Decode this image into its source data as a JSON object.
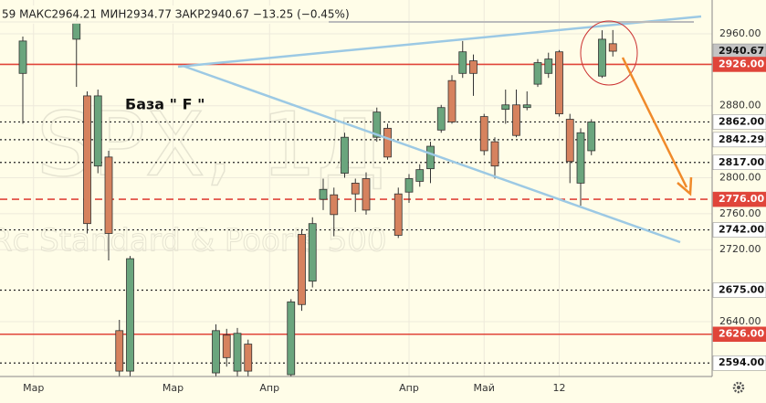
{
  "chart_data": {
    "type": "candlestick",
    "header": "59 МАКС2964.21 МИН2934.77 ЗАКР2940.67 −13.25 (−0.45%)",
    "watermark": [
      "SPX, 1Д",
      "Rc Standard & Poor's 500"
    ],
    "annotation": "База \" F \"",
    "categories": [
      null,
      "Мар",
      null,
      null,
      null,
      null,
      null,
      null,
      null,
      null,
      null,
      null,
      null,
      null,
      "Мар",
      null,
      null,
      null,
      null,
      null,
      null,
      null,
      null,
      "Апр",
      null,
      null,
      null,
      null,
      null,
      null,
      null,
      null,
      null,
      null,
      null,
      null,
      "Апр",
      null,
      null,
      null,
      null,
      null,
      null,
      "Май",
      null,
      null,
      null,
      null,
      null,
      null,
      "12",
      null,
      null,
      null,
      null,
      null
    ],
    "open": [
      2916,
      null,
      null,
      null,
      null,
      2954,
      2891,
      2813,
      2823,
      2630,
      2585,
      null,
      null,
      null,
      null,
      null,
      null,
      null,
      2583,
      2625,
      2585,
      2615,
      null,
      null,
      null,
      2581,
      2737,
      2685,
      2776,
      2781,
      2805,
      2794,
      2799,
      2845,
      2855,
      2782,
      2784,
      2796,
      2810,
      2853,
      2908,
      2916,
      2930,
      2868,
      2840,
      2876,
      2881,
      2878,
      2904,
      2916,
      2940,
      2865,
      2794,
      2830,
      2913,
      2949
    ],
    "high": [
      2957,
      null,
      null,
      null,
      null,
      2982,
      2896,
      2898,
      2830,
      2642,
      2713,
      null,
      null,
      null,
      null,
      null,
      null,
      null,
      2637,
      2632,
      2633,
      2620,
      null,
      null,
      null,
      2665,
      2743,
      2756,
      2799,
      2789,
      2850,
      2799,
      2806,
      2878,
      2860,
      2789,
      2804,
      2815,
      2840,
      2881,
      2914,
      2952,
      2937,
      2871,
      2845,
      2898,
      2898,
      2896,
      2932,
      2939,
      2942,
      2871,
      2855,
      2865,
      2964,
      2964.21
    ],
    "low": [
      2860,
      null,
      null,
      null,
      null,
      2901,
      2738,
      2805,
      2708,
      2575,
      2575,
      null,
      null,
      null,
      null,
      null,
      null,
      null,
      2575,
      2590,
      2575,
      2575,
      null,
      null,
      null,
      2575,
      2652,
      2678,
      2764,
      2735,
      2800,
      2762,
      2759,
      2840,
      2820,
      2733,
      2772,
      2790,
      2794,
      2850,
      2860,
      2911,
      2891,
      2825,
      2799,
      2860,
      2845,
      2875,
      2901,
      2911,
      2868,
      2794,
      2769,
      2825,
      2911,
      2934.77
    ],
    "close": [
      2952,
      null,
      null,
      null,
      null,
      2972,
      2749,
      2891,
      2738,
      2585,
      2710,
      null,
      null,
      null,
      null,
      null,
      null,
      null,
      2630,
      2600,
      2627,
      2585,
      null,
      null,
      null,
      2662,
      2659,
      2749,
      2787,
      2759,
      2845,
      2782,
      2764,
      2873,
      2823,
      2736,
      2799,
      2809,
      2835,
      2878,
      2862,
      2940,
      2916,
      2830,
      2813,
      2881,
      2847,
      2881,
      2928,
      2932,
      2871,
      2818,
      2850,
      2862,
      2954,
      2940.67
    ],
    "up_color": "#6aa57d",
    "down_color": "#d6825e",
    "ylim": [
      2579,
      2997.6
    ],
    "yticks": [
      {
        "value": 2960,
        "label": "2960.00"
      },
      {
        "value": 2880,
        "label": "2880.00"
      },
      {
        "value": 2800,
        "label": "2800.00"
      },
      {
        "value": 2760,
        "label": "2760.00"
      },
      {
        "value": 2720,
        "label": "2720.00"
      },
      {
        "value": 2640,
        "label": "2640.00"
      }
    ],
    "grid": true,
    "levels": [
      {
        "value": 2940.67,
        "label": "2940.67",
        "color": "#c4c4c4",
        "style": "none"
      },
      {
        "value": 2926,
        "label": "2926.00",
        "color": "#e0453a",
        "style": "solid"
      },
      {
        "value": 2862,
        "label": "2862.00",
        "color": "#222222",
        "style": "dotted"
      },
      {
        "value": 2842.29,
        "label": "2842.29",
        "color": "#222222",
        "style": "dotted"
      },
      {
        "value": 2817,
        "label": "2817.00",
        "color": "#222222",
        "style": "dotted"
      },
      {
        "value": 2776,
        "label": "2776.00",
        "color": "#e0453a",
        "style": "dashed"
      },
      {
        "value": 2742,
        "label": "2742.00",
        "color": "#222222",
        "style": "dotted"
      },
      {
        "value": 2675,
        "label": "2675.00",
        "color": "#222222",
        "style": "dotted"
      },
      {
        "value": 2626,
        "label": "2626.00",
        "color": "#e0453a",
        "style": "solid"
      },
      {
        "value": 2594,
        "label": "2594.00",
        "color": "#222222",
        "style": "dotted"
      }
    ]
  }
}
